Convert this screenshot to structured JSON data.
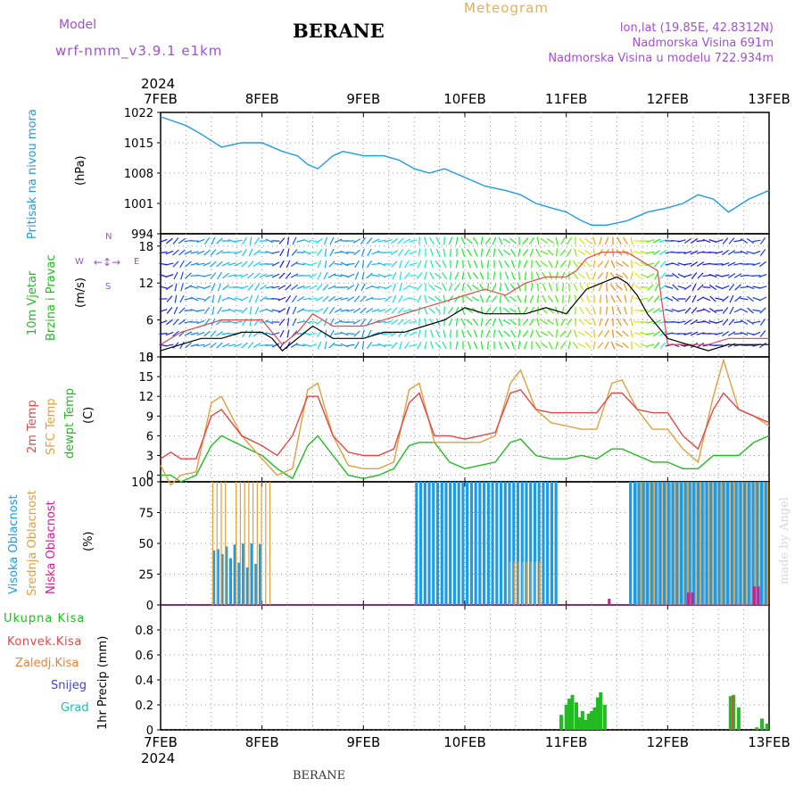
{
  "header": {
    "model_label": "Model",
    "model_name": "wrf-nmm_v3.9.1 e1km",
    "title": "BERANE",
    "chart_type": "Meteogram",
    "lonlat": "lon,lat (19.85E, 42.8312N)",
    "elevation": "Nadmorska Visina 691m",
    "model_elevation": "Nadmorska Visina u modelu 722.934m"
  },
  "footer": {
    "station": "BERANE",
    "credit": "made by Angel"
  },
  "time_axis": {
    "year": "2024",
    "ticks": [
      "7FEB",
      "8FEB",
      "9FEB",
      "10FEB",
      "11FEB",
      "12FEB",
      "13FEB"
    ]
  },
  "colors": {
    "pressure": "#1e9be6",
    "wind_speed": "#000000",
    "gust": "#e04848",
    "temp2m": "#e04848",
    "sfc_temp": "#e0a040",
    "dewpoint": "#22bb22",
    "high_cloud": "#1e9be6",
    "mid_cloud": "#e0a040",
    "low_cloud": "#cc2288",
    "total_precip": "#22bb22",
    "conv_precip": "#e04848",
    "frozen_precip": "#f08030",
    "snow": "#4040cc",
    "graupel": "#22bbbb"
  },
  "chart_data": [
    {
      "type": "line",
      "panel": "pressure",
      "ylabel": [
        "Pritisak na nivou mora",
        "(hPa)"
      ],
      "ylim": [
        994,
        1022
      ],
      "yticks": [
        994,
        1001,
        1008,
        1015,
        1022
      ],
      "x": [
        7.0,
        7.25,
        7.4,
        7.6,
        7.8,
        8.0,
        8.2,
        8.35,
        8.45,
        8.55,
        8.7,
        8.8,
        9.0,
        9.2,
        9.35,
        9.5,
        9.65,
        9.8,
        10.0,
        10.2,
        10.4,
        10.55,
        10.7,
        10.85,
        11.0,
        11.15,
        11.25,
        11.4,
        11.6,
        11.8,
        12.0,
        12.15,
        12.3,
        12.45,
        12.6,
        12.8,
        13.0
      ],
      "series": [
        {
          "values": [
            1021,
            1019,
            1017,
            1014,
            1015,
            1015,
            1013,
            1012,
            1010,
            1009,
            1012,
            1013,
            1012,
            1012,
            1011,
            1009,
            1008,
            1009,
            1007,
            1005,
            1004,
            1003,
            1001,
            1000,
            999,
            997,
            996,
            996,
            997,
            999,
            1000,
            1001,
            1003,
            1002,
            999,
            1002,
            1004
          ]
        }
      ]
    },
    {
      "type": "line",
      "panel": "wind",
      "ylabel": [
        "10m Vjetar",
        "Brzina i Pravac",
        "(m/s)"
      ],
      "ylim": [
        0,
        20
      ],
      "yticks": [
        0,
        6,
        12,
        18
      ],
      "compass": [
        "N",
        "W",
        "E",
        "S"
      ],
      "x": [
        7.0,
        7.2,
        7.4,
        7.6,
        7.8,
        8.0,
        8.1,
        8.2,
        8.35,
        8.5,
        8.7,
        9.0,
        9.2,
        9.4,
        9.6,
        9.8,
        10.0,
        10.2,
        10.4,
        10.6,
        10.8,
        11.0,
        11.1,
        11.2,
        11.35,
        11.5,
        11.6,
        11.7,
        11.8,
        11.9,
        12.0,
        12.2,
        12.4,
        12.6,
        12.8,
        13.0
      ],
      "series": [
        {
          "name": "wind speed",
          "values": [
            1,
            2,
            3,
            3,
            4,
            4,
            3,
            1,
            3,
            5,
            3,
            3,
            4,
            4,
            5,
            6,
            8,
            7,
            7,
            7,
            8,
            7,
            9,
            11,
            12,
            13,
            12,
            10,
            7,
            5,
            3,
            2,
            1,
            2,
            2,
            2
          ]
        },
        {
          "name": "gust",
          "values": [
            2,
            4,
            5,
            6,
            6,
            6,
            4,
            2,
            4,
            7,
            5,
            5,
            6,
            7,
            8,
            9,
            10,
            11,
            10,
            12,
            13,
            13,
            14,
            16,
            17,
            17,
            17,
            16,
            15,
            14,
            2,
            2,
            2,
            3,
            3,
            3
          ]
        }
      ]
    },
    {
      "type": "line",
      "panel": "temperature",
      "ylabel": [
        "2m Temp",
        "SFC Temp",
        "dewpt Temp",
        "(C)"
      ],
      "ylim": [
        -1,
        18
      ],
      "yticks": [
        0,
        3,
        6,
        9,
        12,
        15,
        18
      ],
      "x": [
        7.0,
        7.1,
        7.2,
        7.35,
        7.5,
        7.6,
        7.8,
        8.0,
        8.15,
        8.3,
        8.45,
        8.55,
        8.7,
        8.85,
        9.0,
        9.15,
        9.3,
        9.45,
        9.55,
        9.7,
        9.85,
        10.0,
        10.15,
        10.3,
        10.45,
        10.55,
        10.7,
        10.85,
        11.0,
        11.15,
        11.3,
        11.45,
        11.55,
        11.7,
        11.85,
        12.0,
        12.15,
        12.3,
        12.45,
        12.55,
        12.7,
        12.85,
        13.0
      ],
      "series": [
        {
          "name": "2m Temp",
          "values": [
            2.5,
            3.5,
            2.5,
            2.5,
            9,
            10,
            6,
            4.5,
            3,
            6,
            12,
            12,
            6,
            3.5,
            3,
            3,
            4,
            11,
            12.5,
            6,
            6,
            5.5,
            6,
            6.5,
            12.5,
            13,
            10,
            9.5,
            9.5,
            9.5,
            9.5,
            12.5,
            12.5,
            10,
            9.5,
            9.5,
            6,
            4,
            10,
            12.5,
            10,
            9,
            8
          ]
        },
        {
          "name": "SFC Temp",
          "values": [
            1.5,
            -1.5,
            0,
            0.5,
            11,
            12,
            6,
            2.5,
            0,
            1,
            13,
            14,
            6,
            1.5,
            1,
            1,
            2,
            13,
            14,
            5,
            5,
            5,
            5,
            6,
            14,
            16,
            10,
            8,
            7.5,
            7,
            7,
            14,
            14.5,
            10,
            7,
            7,
            4,
            2,
            12,
            17.5,
            10,
            9,
            7.5
          ]
        },
        {
          "name": "dewpt Temp",
          "values": [
            0,
            0,
            -1,
            0,
            4.5,
            6,
            4.5,
            3,
            1,
            -0.5,
            4.5,
            6,
            3,
            0,
            -0.5,
            0,
            1,
            4.5,
            5,
            5,
            2,
            1,
            1.5,
            2,
            5,
            5.5,
            3,
            2.5,
            2.5,
            3,
            2.5,
            4,
            4,
            3,
            2,
            2,
            1,
            1,
            3,
            3,
            3,
            5,
            6
          ]
        }
      ]
    },
    {
      "type": "bar",
      "panel": "cloud",
      "ylabel": [
        "Visoka Oblacnost",
        "Srednja Oblacnost",
        "Niska Oblacnost",
        "(%)"
      ],
      "ylim": [
        0,
        100
      ],
      "yticks": [
        0,
        25,
        50,
        75,
        100
      ],
      "series": [
        {
          "name": "Visoka Oblacnost",
          "ranges": [
            [
              7.52,
              8.0,
              50
            ],
            [
              9.52,
              10.9,
              100
            ],
            [
              11.63,
              13.0,
              100
            ]
          ]
        },
        {
          "name": "Srednja Oblacnost",
          "ranges": [
            [
              7.52,
              7.65,
              100
            ],
            [
              7.75,
              8.1,
              100
            ],
            [
              10.45,
              10.75,
              35
            ],
            [
              11.7,
              13.0,
              100
            ]
          ]
        },
        {
          "name": "Niska Oblacnost",
          "ranges": [
            [
              11.42,
              11.45,
              5
            ],
            [
              12.2,
              12.25,
              10
            ],
            [
              12.85,
              12.9,
              15
            ]
          ]
        }
      ]
    },
    {
      "type": "bar",
      "panel": "precip",
      "ylabel": [
        "1hr Precip (mm)"
      ],
      "legend": [
        "Ukupna Kisa",
        "Konvek.Kisa",
        "Zaledj.Kisa",
        "Snijeg",
        "Grad"
      ],
      "ylim": [
        0,
        1.0
      ],
      "yticks": [
        0,
        0.2,
        0.4,
        0.6,
        0.8
      ],
      "series": [
        {
          "name": "Ukupna Kisa",
          "x": [
            10.95,
            11.0,
            11.03,
            11.06,
            11.1,
            11.13,
            11.16,
            11.19,
            11.22,
            11.25,
            11.28,
            11.31,
            11.34,
            11.38,
            12.62,
            12.65,
            12.7,
            12.88,
            12.93,
            12.98
          ],
          "values": [
            0.12,
            0.2,
            0.25,
            0.28,
            0.22,
            0.1,
            0.15,
            0.08,
            0.13,
            0.15,
            0.18,
            0.26,
            0.3,
            0.2,
            0.27,
            0.28,
            0.18,
            0.02,
            0.09,
            0.05
          ]
        },
        {
          "name": "Konvek.Kisa",
          "x": [
            12.65
          ],
          "values": [
            0.27
          ]
        }
      ]
    }
  ]
}
